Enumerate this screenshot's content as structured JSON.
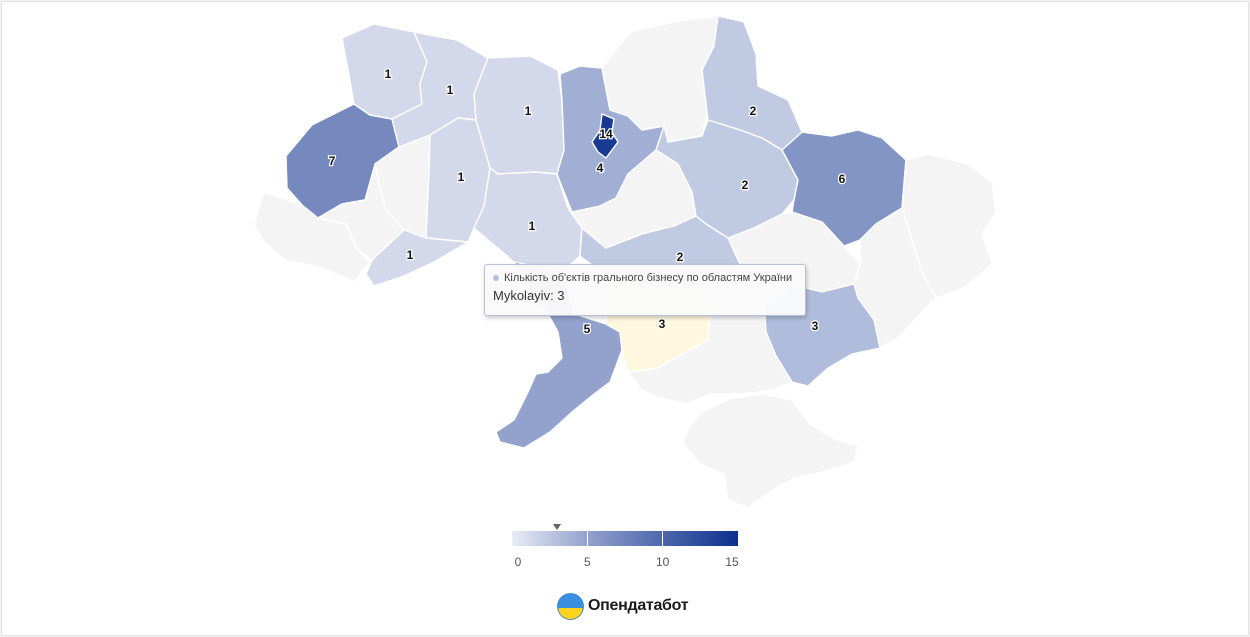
{
  "map": {
    "regions": [
      {
        "id": "volyn",
        "value": 1
      },
      {
        "id": "rivne",
        "value": 1
      },
      {
        "id": "zhytomyr",
        "value": 1
      },
      {
        "id": "kyiv-oblast",
        "value": 4
      },
      {
        "id": "kyiv-city",
        "value": 14
      },
      {
        "id": "chernihiv",
        "value": null
      },
      {
        "id": "sumy",
        "value": 2
      },
      {
        "id": "lviv",
        "value": 7
      },
      {
        "id": "ternopil",
        "value": null
      },
      {
        "id": "khmelnytskyi",
        "value": 1
      },
      {
        "id": "vinnytsia",
        "value": 1
      },
      {
        "id": "cherkasy",
        "value": null
      },
      {
        "id": "poltava",
        "value": 2
      },
      {
        "id": "kharkiv",
        "value": 6
      },
      {
        "id": "luhansk",
        "value": null
      },
      {
        "id": "zakarpattia",
        "value": null
      },
      {
        "id": "ivano-frankivsk",
        "value": null
      },
      {
        "id": "chernivtsi",
        "value": 1
      },
      {
        "id": "kirovohrad",
        "value": 2
      },
      {
        "id": "dnipropetrovsk",
        "value": null
      },
      {
        "id": "donetsk",
        "value": null
      },
      {
        "id": "odesa",
        "value": 5
      },
      {
        "id": "mykolaiv",
        "value": 3
      },
      {
        "id": "zaporizhzhia",
        "value": 3
      },
      {
        "id": "kherson",
        "value": null
      },
      {
        "id": "crimea",
        "value": null
      }
    ],
    "colors": {
      "no_data": "#f4f4f4",
      "hover": "#fff8de",
      "scale_min": "#e9ecf6",
      "scale_max": "#0b2f8c",
      "tooltip_dot": "#b6c0dc"
    }
  },
  "tooltip": {
    "series_name": "Кількість об'єктів грального бізнесу по областям України",
    "point": "Mykolayiv: 3"
  },
  "legend": {
    "min": 0,
    "max": 15,
    "ticks": [
      "0",
      "5",
      "10",
      "15"
    ],
    "marker_value": 3
  },
  "brand": {
    "name": "Опендатабот"
  }
}
